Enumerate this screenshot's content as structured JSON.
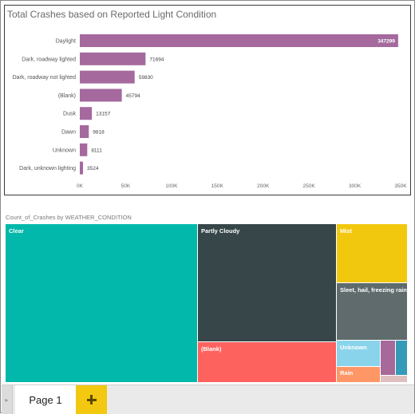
{
  "bar_visual": {
    "title": "Total Crashes based on Reported Light Condition"
  },
  "treemap_visual": {
    "title": "Count_of_Crashes by WEATHER_CONDITION"
  },
  "page_tabs": {
    "active_tab_label": "Page 1",
    "add_page_icon": "plus-icon",
    "scroll_icon": "chevron-right-icon"
  },
  "colors": {
    "bar": "#a5699e",
    "accent_yellow": "#f2c811"
  },
  "chart_data": [
    {
      "type": "bar",
      "orientation": "horizontal",
      "title": "Total Crashes based on Reported Light Condition",
      "categories": [
        "Daylight",
        "Dark, roadway lighted",
        "Dark, roadway not lighted",
        "(Blank)",
        "Dusk",
        "Dawn",
        "Unknown",
        "Dark, unknown lighting"
      ],
      "values": [
        347299,
        71694,
        59830,
        45794,
        13157,
        9818,
        8111,
        3524
      ],
      "xlim": [
        0,
        350000
      ],
      "ticks": [
        0,
        50000,
        100000,
        150000,
        200000,
        250000,
        300000,
        350000
      ],
      "tick_labels": [
        "0K",
        "50K",
        "100K",
        "150K",
        "200K",
        "250K",
        "300K",
        "350K"
      ],
      "grid": false,
      "color": "#a5699e"
    },
    {
      "type": "treemap",
      "title": "Count_of_Crashes by WEATHER_CONDITION",
      "labels": [
        "Clear",
        "Partly Cloudy",
        "(Blank)",
        "Mist",
        "Sleet, hail, freezing rain",
        "Unknown",
        "Rain"
      ],
      "colors": [
        "#01b8aa",
        "#374649",
        "#fd625e",
        "#f2c80f",
        "#5f6b6d",
        "#8ad4eb",
        "#fe9666",
        "#a66999",
        "#3599b8",
        "#dfbfbf"
      ]
    }
  ]
}
